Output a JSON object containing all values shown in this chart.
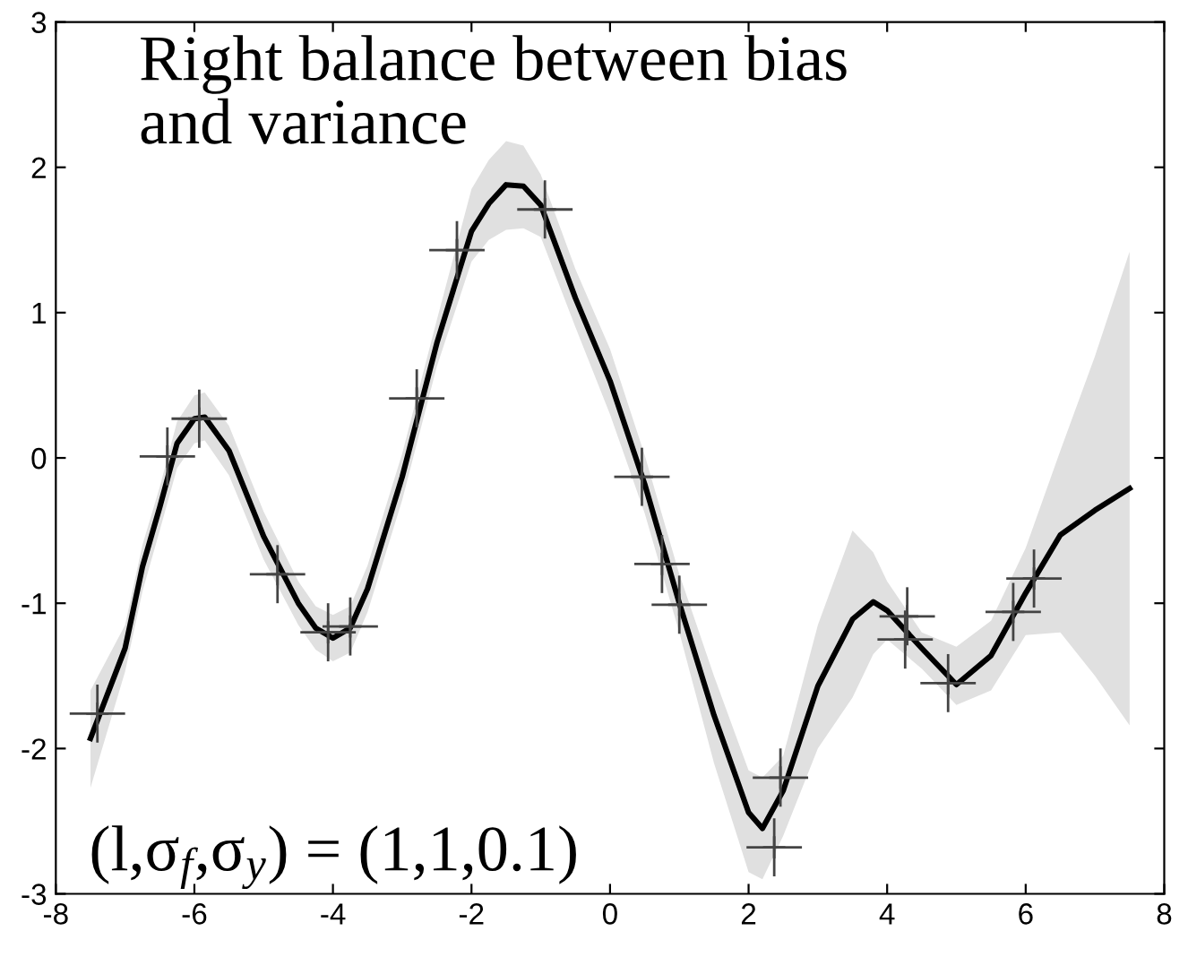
{
  "chart_data": {
    "type": "line",
    "xlim": [
      -8,
      8
    ],
    "ylim": [
      -3,
      3
    ],
    "xticks": [
      -8,
      -6,
      -4,
      -2,
      0,
      2,
      4,
      6,
      8
    ],
    "yticks": [
      -3,
      -2,
      -1,
      0,
      1,
      2,
      3
    ],
    "grid": false,
    "legend": false,
    "annotations": [
      "Right balance between bias\nand variance",
      "(l,σ$_{f}$,σ$_{y}$) = (1,1,0.1)"
    ],
    "series": [
      {
        "color": "#000000",
        "marker": "none",
        "line_style": "solid",
        "x": [
          -7.5,
          -7.0,
          -6.75,
          -6.5,
          -6.25,
          -6.0,
          -5.85,
          -5.5,
          -5.0,
          -4.5,
          -4.25,
          -4.0,
          -3.75,
          -3.5,
          -3.0,
          -2.5,
          -2.0,
          -1.75,
          -1.5,
          -1.25,
          -1.0,
          -0.5,
          0,
          0.5,
          1.0,
          1.5,
          2.0,
          2.2,
          2.5,
          3.0,
          3.5,
          3.8,
          4.0,
          4.5,
          5.0,
          5.5,
          6.0,
          6.5,
          7.0,
          7.5
        ],
        "values": [
          -1.93,
          -1.31,
          -0.75,
          -0.34,
          0.1,
          0.27,
          0.28,
          0.05,
          -0.54,
          -1.0,
          -1.17,
          -1.24,
          -1.17,
          -0.9,
          -0.13,
          0.79,
          1.56,
          1.75,
          1.88,
          1.87,
          1.74,
          1.1,
          0.53,
          -0.18,
          -1.0,
          -1.77,
          -2.44,
          -2.55,
          -2.29,
          -1.57,
          -1.11,
          -0.99,
          -1.05,
          -1.31,
          -1.56,
          -1.36,
          -0.93,
          -0.53,
          -0.36,
          -0.21
        ],
        "upper": [
          -1.6,
          -1.15,
          -0.6,
          -0.2,
          0.25,
          0.43,
          0.45,
          0.22,
          -0.37,
          -0.85,
          -1.02,
          -1.08,
          -1.02,
          -0.74,
          0.03,
          0.95,
          1.85,
          2.05,
          2.18,
          2.15,
          1.95,
          1.3,
          0.75,
          0.02,
          -0.8,
          -1.5,
          -2.15,
          -2.2,
          -2.05,
          -1.15,
          -0.5,
          -0.65,
          -0.85,
          -1.2,
          -1.3,
          -1.12,
          -0.62,
          0.05,
          0.7,
          1.42
        ],
        "lower": [
          -2.27,
          -1.47,
          -0.92,
          -0.5,
          -0.07,
          0.1,
          0.12,
          -0.12,
          -0.7,
          -1.15,
          -1.32,
          -1.4,
          -1.34,
          -1.06,
          -0.29,
          0.63,
          1.35,
          1.5,
          1.57,
          1.58,
          1.52,
          0.9,
          0.3,
          -0.38,
          -1.2,
          -2.1,
          -2.85,
          -2.9,
          -2.6,
          -2.0,
          -1.65,
          -1.35,
          -1.25,
          -1.45,
          -1.7,
          -1.6,
          -1.22,
          -1.2,
          -1.5,
          -1.84
        ]
      },
      {
        "type": "scatter",
        "color": "#444444",
        "marker": "cross",
        "errors": [
          0.2,
          0.2,
          0.2,
          0.2,
          0.2,
          0.2,
          0.2,
          0.2,
          0.2,
          0.2,
          0.2,
          0.2,
          0.2,
          0.2,
          0.2,
          0.2,
          0.2,
          0.2,
          0.2
        ],
        "xerrors": [
          0.4,
          0.4,
          0.4,
          0.4,
          0.4,
          0.4,
          0.4,
          0.4,
          0.4,
          0.4,
          0.4,
          0.4,
          0.4,
          0.4,
          0.4,
          0.4,
          0.4,
          0.4,
          0.4
        ],
        "x": [
          -7.4,
          -6.39,
          -5.93,
          -4.8,
          -4.07,
          -3.75,
          -2.79,
          -2.21,
          -0.94,
          0.46,
          0.75,
          1.0,
          2.46,
          2.37,
          4.29,
          4.26,
          4.88,
          5.82,
          6.12
        ],
        "values": [
          -1.76,
          0.01,
          0.27,
          -0.8,
          -1.2,
          -1.16,
          0.41,
          1.43,
          1.71,
          -0.13,
          -0.73,
          -1.01,
          -2.2,
          -2.68,
          -1.09,
          -1.25,
          -1.55,
          -1.06,
          -0.83
        ]
      }
    ]
  }
}
